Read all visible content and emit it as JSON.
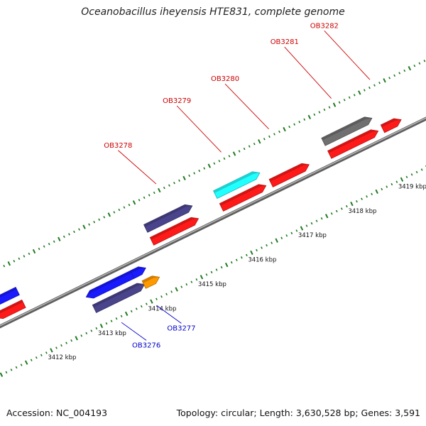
{
  "title": "Oceanobacillus iheyensis HTE831, complete genome",
  "footer": {
    "accession": "Accession: NC_004193",
    "summary": "Topology: circular; Length: 3,630,528 bp; Genes: 3,591"
  },
  "colors": {
    "backbone": "#8c8c8c",
    "ticks": "#1f7a1f",
    "forward_label": "#cc0000",
    "reverse_label": "#0000cc",
    "red": "#ff1a1a",
    "blue": "#1a1aff",
    "slate": "#4a448c",
    "cyan": "#22ffff",
    "orange": "#ff9900",
    "gray": "#707070"
  },
  "scale": {
    "unit": "kbp",
    "labels": [
      "3412 kbp",
      "3413 kbp",
      "3414 kbp",
      "3415 kbp",
      "3416 kbp",
      "3417 kbp",
      "3418 kbp",
      "3419 kbp"
    ],
    "kbp_values": [
      3412,
      3413,
      3414,
      3415,
      3416,
      3417,
      3418,
      3419
    ],
    "view_start_kbp": 3411.4,
    "view_end_kbp": 3420.2
  },
  "features": [
    {
      "strand": "-",
      "start_kbp": 3411.36,
      "end_kbp": 3411.92,
      "lane": "out2",
      "color": "blue"
    },
    {
      "strand": "-",
      "start_kbp": 3411.36,
      "end_kbp": 3411.92,
      "lane": "out1",
      "color": "red"
    },
    {
      "strand": "-",
      "start_kbp": 3412.98,
      "end_kbp": 3413.98,
      "lane": "in1",
      "color": "blue"
    },
    {
      "strand": "+",
      "start_kbp": 3413.9,
      "end_kbp": 3414.17,
      "lane": "in1",
      "color": "blue"
    },
    {
      "strand": "+",
      "start_kbp": 3413.02,
      "end_kbp": 3414.02,
      "lane": "in2",
      "color": "slate"
    },
    {
      "strand": "+",
      "start_kbp": 3414.01,
      "end_kbp": 3414.32,
      "lane": "in2",
      "color": "orange"
    },
    {
      "strand": "+",
      "start_kbp": 3414.48,
      "end_kbp": 3415.41,
      "lane": "out2",
      "color": "slate"
    },
    {
      "strand": "+",
      "start_kbp": 3414.48,
      "end_kbp": 3415.41,
      "lane": "out1",
      "color": "red"
    },
    {
      "strand": "+",
      "start_kbp": 3415.87,
      "end_kbp": 3416.76,
      "lane": "out2",
      "color": "cyan"
    },
    {
      "strand": "+",
      "start_kbp": 3415.87,
      "end_kbp": 3416.76,
      "lane": "out1",
      "color": "red"
    },
    {
      "strand": "+",
      "start_kbp": 3416.86,
      "end_kbp": 3417.62,
      "lane": "out1",
      "color": "red"
    },
    {
      "strand": "+",
      "start_kbp": 3418.03,
      "end_kbp": 3419.0,
      "lane": "out2",
      "color": "gray"
    },
    {
      "strand": "+",
      "start_kbp": 3418.03,
      "end_kbp": 3419.0,
      "lane": "out1",
      "color": "red"
    },
    {
      "strand": "+",
      "start_kbp": 3419.09,
      "end_kbp": 3419.46,
      "lane": "out1",
      "color": "red"
    }
  ],
  "gene_labels": [
    {
      "name": "OB3276",
      "strand": "-",
      "anchor_kbp": 3413.35
    },
    {
      "name": "OB3277",
      "strand": "-",
      "anchor_kbp": 3414.05
    },
    {
      "name": "OB3278",
      "strand": "+",
      "anchor_kbp": 3415.0
    },
    {
      "name": "OB3279",
      "strand": "+",
      "anchor_kbp": 3416.3
    },
    {
      "name": "OB3280",
      "strand": "+",
      "anchor_kbp": 3417.25
    },
    {
      "name": "OB3281",
      "strand": "+",
      "anchor_kbp": 3418.5
    },
    {
      "name": "OB3282",
      "strand": "+",
      "anchor_kbp": 3419.27
    }
  ]
}
